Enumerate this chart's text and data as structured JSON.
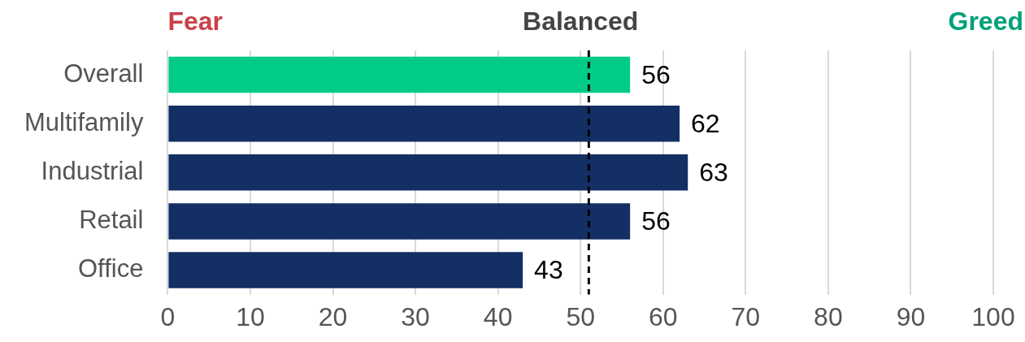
{
  "chart_data": {
    "type": "bar",
    "orientation": "horizontal",
    "categories": [
      "Overall",
      "Multifamily",
      "Industrial",
      "Retail",
      "Office"
    ],
    "values": [
      56,
      62,
      63,
      56,
      43
    ],
    "colors": [
      "#00cc88",
      "#132f63",
      "#132f63",
      "#132f63",
      "#132f63"
    ],
    "xlim": [
      0,
      100
    ],
    "xticks": [
      0,
      10,
      20,
      30,
      40,
      50,
      60,
      70,
      80,
      90,
      100
    ],
    "grid": "x",
    "legend": false,
    "data_labels": true,
    "ref_lines": [
      {
        "axis": "x",
        "value": 51,
        "line_style": "dashed",
        "color": "#000000"
      }
    ],
    "annotations": [
      "Fear",
      "Balanced",
      "Greed"
    ]
  }
}
